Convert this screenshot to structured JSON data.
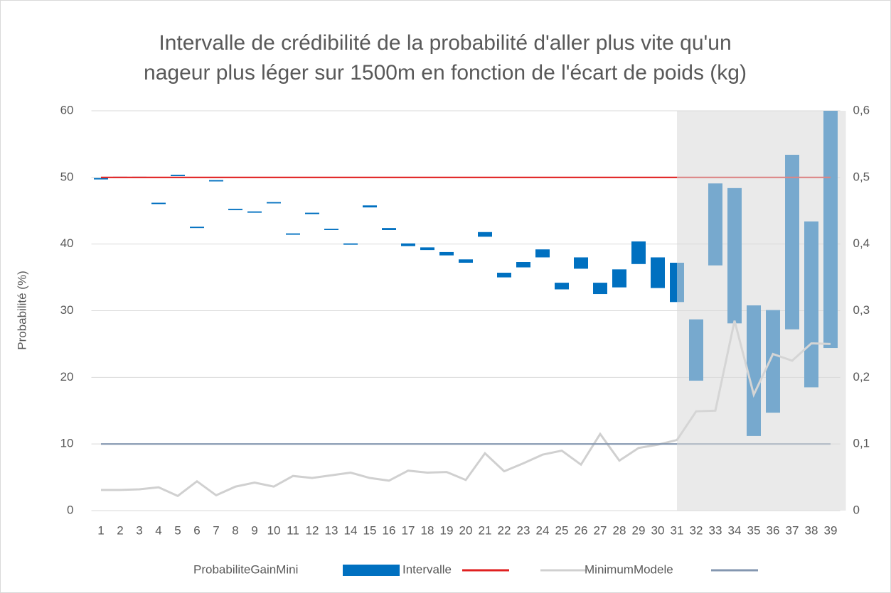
{
  "chart_data": {
    "type": "bar",
    "title": [
      "Intervalle de crédibilité de la probabilité d'aller plus vite qu'un",
      "nageur plus léger sur 1500m en fonction de l'écart de poids (kg)"
    ],
    "ylabel": "Probabilité (%)",
    "categories": [
      "1",
      "2",
      "3",
      "4",
      "5",
      "6",
      "7",
      "8",
      "9",
      "10",
      "11",
      "12",
      "13",
      "14",
      "15",
      "16",
      "17",
      "18",
      "19",
      "20",
      "21",
      "22",
      "23",
      "24",
      "25",
      "26",
      "27",
      "28",
      "29",
      "30",
      "31",
      "32",
      "33",
      "34",
      "35",
      "36",
      "37",
      "38",
      "39"
    ],
    "stacked": true,
    "ylim": [
      0,
      60
    ],
    "yticks": [
      0,
      10,
      20,
      30,
      40,
      50,
      60
    ],
    "y2lim": [
      0,
      0.6
    ],
    "y2ticks": [
      0,
      {
        "value": 0.1,
        "label": "0,1"
      },
      {
        "value": 0.2,
        "label": "0,2"
      },
      {
        "value": 0.3,
        "label": "0,3"
      },
      {
        "value": 0.4,
        "label": "0,4"
      },
      {
        "value": 0.5,
        "label": "0,5"
      },
      {
        "value": 0.6,
        "label": "0,6"
      }
    ],
    "grid": true,
    "legend": "bottom",
    "series": [
      {
        "name": "ProbabiliteGainMini",
        "kind": "bar",
        "color": "none",
        "values": [
          49.7,
          50.0,
          50.0,
          46.0,
          50.2,
          42.4,
          49.4,
          45.1,
          44.7,
          46.1,
          41.4,
          44.5,
          42.1,
          39.9,
          45.5,
          42.1,
          39.7,
          39.1,
          38.3,
          37.2,
          41.1,
          35.0,
          36.5,
          38.0,
          33.2,
          36.3,
          32.5,
          33.5,
          37.0,
          33.4,
          31.3,
          19.5,
          36.8,
          28.1,
          11.2,
          14.7,
          27.2,
          18.5,
          24.4
        ]
      },
      {
        "name": "Intervalle",
        "kind": "bar",
        "color": "#0070c0",
        "values": [
          0.2,
          0.1,
          0.1,
          0.2,
          0.2,
          0.2,
          0.2,
          0.2,
          0.2,
          0.2,
          0.2,
          0.2,
          0.2,
          0.2,
          0.3,
          0.3,
          0.4,
          0.4,
          0.5,
          0.5,
          0.7,
          0.7,
          0.8,
          1.2,
          1.0,
          1.7,
          1.7,
          2.7,
          3.4,
          4.6,
          5.9,
          9.2,
          12.3,
          20.3,
          19.6,
          15.4,
          26.2,
          24.9,
          35.6
        ]
      },
      {
        "kind": "line",
        "color": "#e02020",
        "values": [
          50,
          50,
          50,
          50,
          50,
          50,
          50,
          50,
          50,
          50,
          50,
          50,
          50,
          50,
          50,
          50,
          50,
          50,
          50,
          50,
          50,
          50,
          50,
          50,
          50,
          50,
          50,
          50,
          50,
          50,
          50,
          50,
          50,
          50,
          50,
          50,
          50,
          50,
          50
        ]
      },
      {
        "name": "MinimumModele",
        "kind": "line",
        "axis": "y2",
        "color": "#d0d0d0",
        "values": [
          0.031,
          0.031,
          0.032,
          0.035,
          0.022,
          0.044,
          0.023,
          0.036,
          0.042,
          0.036,
          0.052,
          0.049,
          0.053,
          0.057,
          0.049,
          0.045,
          0.06,
          0.057,
          0.058,
          0.046,
          0.086,
          0.059,
          0.071,
          0.084,
          0.09,
          0.069,
          0.115,
          0.075,
          0.094,
          0.099,
          0.106,
          0.149,
          0.15,
          0.285,
          0.174,
          0.235,
          0.225,
          0.251,
          0.25
        ]
      },
      {
        "kind": "line",
        "color": "#8497b0",
        "values": [
          10,
          10,
          10,
          10,
          10,
          10,
          10,
          10,
          10,
          10,
          10,
          10,
          10,
          10,
          10,
          10,
          10,
          10,
          10,
          10,
          10,
          10,
          10,
          10,
          10,
          10,
          10,
          10,
          10,
          10,
          10,
          10,
          10,
          10,
          10,
          10,
          10,
          10,
          10
        ]
      }
    ]
  }
}
